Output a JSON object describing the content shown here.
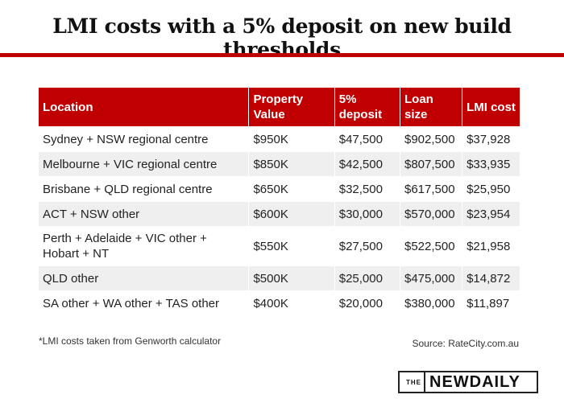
{
  "title": "LMI costs with a 5% deposit on new build thresholds",
  "table": {
    "headers": [
      "Location",
      "Property Value",
      "5% deposit",
      "Loan size",
      "LMI cost"
    ],
    "rows": [
      [
        "Sydney + NSW regional centre",
        "$950K",
        "$47,500",
        "$902,500",
        "$37,928"
      ],
      [
        "Melbourne + VIC regional centre",
        "$850K",
        "$42,500",
        "$807,500",
        "$33,935"
      ],
      [
        "Brisbane + QLD regional centre",
        "$650K",
        "$32,500",
        "$617,500",
        "$25,950"
      ],
      [
        "ACT + NSW other",
        "$600K",
        "$30,000",
        "$570,000",
        "$23,954"
      ],
      [
        "Perth + Adelaide + VIC other + Hobart + NT",
        "$550K",
        "$27,500",
        "$522,500",
        "$21,958"
      ],
      [
        "QLD other",
        "$500K",
        "$25,000",
        "$475,000",
        "$14,872"
      ],
      [
        "SA other + WA other + TAS other",
        "$400K",
        "$20,000",
        "$380,000",
        "$11,897"
      ]
    ]
  },
  "footnote": "*LMI costs taken from Genworth calculator",
  "source": "Source: RateCity.com.au",
  "logo": {
    "the": "THE",
    "brand": "NEWDAILY"
  },
  "colors": {
    "accent": "#c00000",
    "row_alt": "#efefef"
  }
}
